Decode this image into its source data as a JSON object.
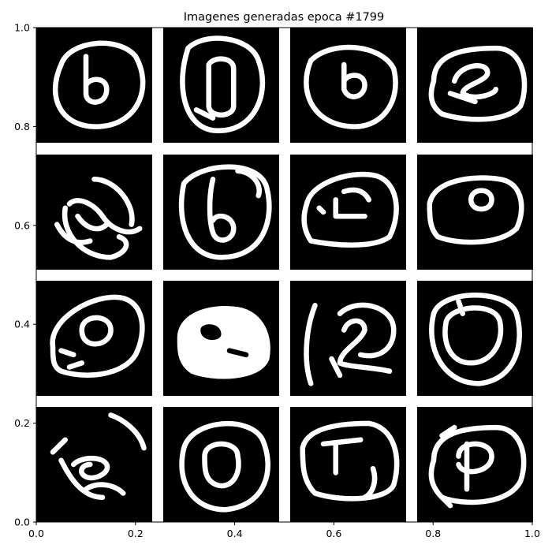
{
  "chart_data": {
    "type": "image-grid",
    "title": "Imagenes generadas epoca #1799",
    "xlim": [
      0,
      1
    ],
    "ylim": [
      0,
      1
    ],
    "xticks": [
      "0.0",
      "0.2",
      "0.4",
      "0.6",
      "0.8",
      "1.0"
    ],
    "yticks": [
      "0.0",
      "0.2",
      "0.4",
      "0.6",
      "0.8",
      "1.0"
    ],
    "grid": {
      "rows": 4,
      "cols": 4
    },
    "tile_background": "#000000",
    "stroke_color": "#ffffff",
    "frame_color": "#000000",
    "tiles": [
      {
        "row": 0,
        "col": 0,
        "glyph": "ring-with-b"
      },
      {
        "row": 0,
        "col": 1,
        "glyph": "ring-with-0"
      },
      {
        "row": 0,
        "col": 2,
        "glyph": "ring-with-b-small"
      },
      {
        "row": 0,
        "col": 3,
        "glyph": "ring-with-loop"
      },
      {
        "row": 1,
        "col": 0,
        "glyph": "swirl"
      },
      {
        "row": 1,
        "col": 1,
        "glyph": "ring-with-6"
      },
      {
        "row": 1,
        "col": 2,
        "glyph": "ring-with-4"
      },
      {
        "row": 1,
        "col": 3,
        "glyph": "ring-with-o-small"
      },
      {
        "row": 2,
        "col": 0,
        "glyph": "ring-with-o-noisy"
      },
      {
        "row": 2,
        "col": 1,
        "glyph": "blob-bright"
      },
      {
        "row": 2,
        "col": 2,
        "glyph": "stroke-with-2"
      },
      {
        "row": 2,
        "col": 3,
        "glyph": "double-ring"
      },
      {
        "row": 3,
        "col": 0,
        "glyph": "scribble"
      },
      {
        "row": 3,
        "col": 1,
        "glyph": "concentric-rings"
      },
      {
        "row": 3,
        "col": 2,
        "glyph": "ring-with-t"
      },
      {
        "row": 3,
        "col": 3,
        "glyph": "ring-with-p"
      }
    ]
  }
}
